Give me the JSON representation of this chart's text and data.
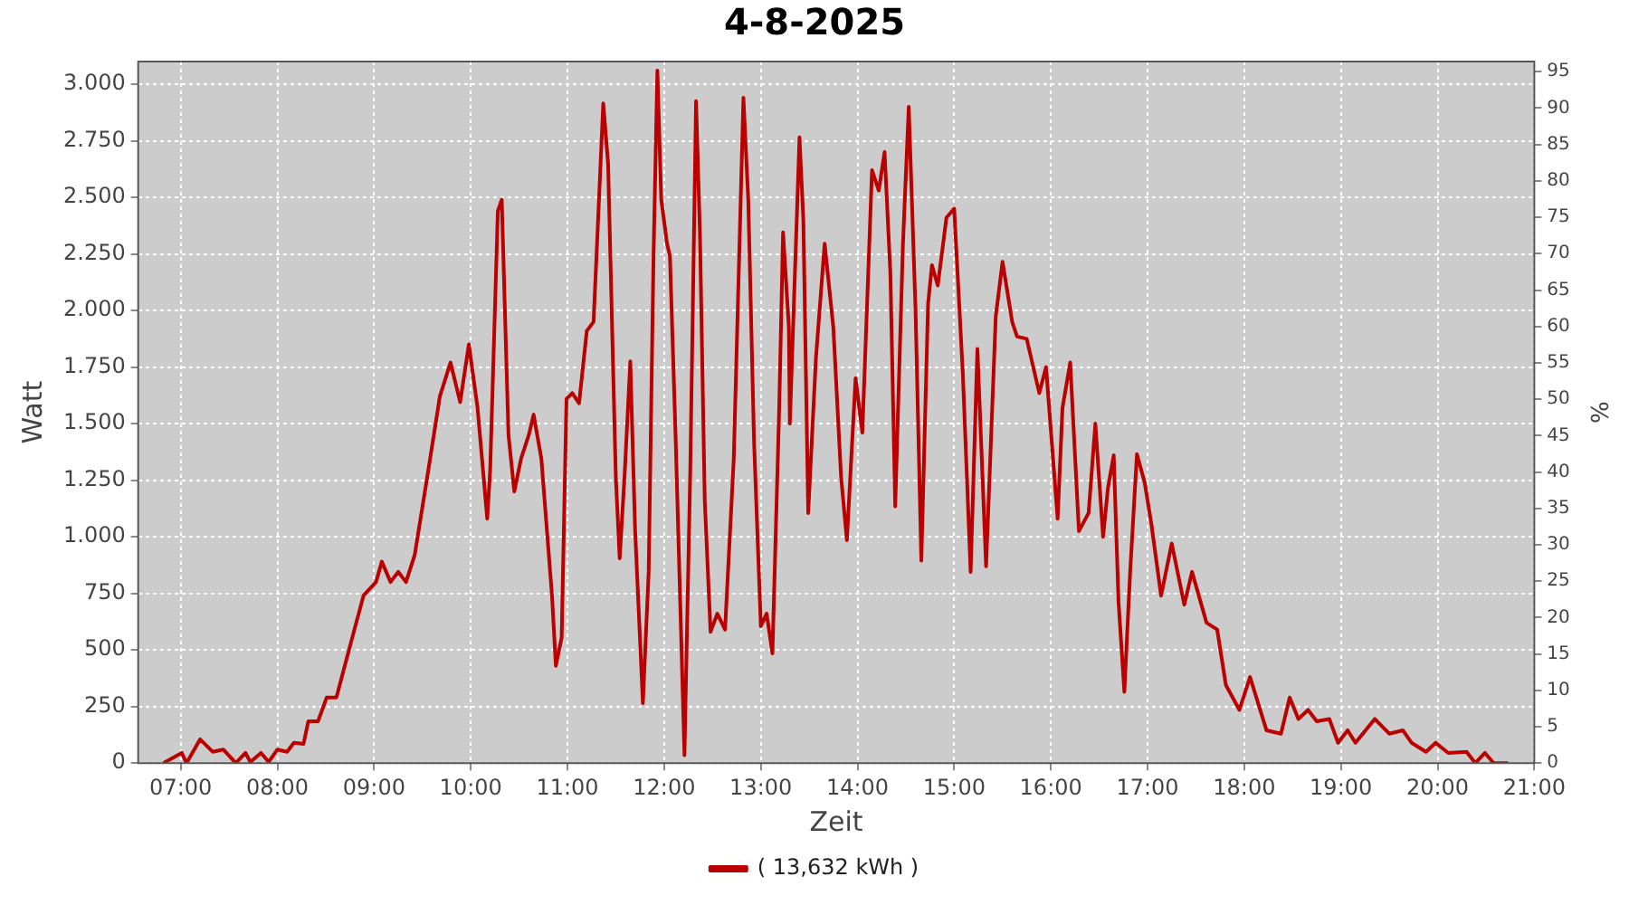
{
  "chart_data": {
    "type": "line",
    "title": "4-8-2025",
    "xlabel": "Zeit",
    "ylabel": "Watt",
    "y2label": "%",
    "xlim": [
      6.56,
      21
    ],
    "xticks": [
      {
        "value": 7,
        "label": "07:00"
      },
      {
        "value": 8,
        "label": "08:00"
      },
      {
        "value": 9,
        "label": "09:00"
      },
      {
        "value": 10,
        "label": "10:00"
      },
      {
        "value": 11,
        "label": "11:00"
      },
      {
        "value": 12,
        "label": "12:00"
      },
      {
        "value": 13,
        "label": "13:00"
      },
      {
        "value": 14,
        "label": "14:00"
      },
      {
        "value": 15,
        "label": "15:00"
      },
      {
        "value": 16,
        "label": "16:00"
      },
      {
        "value": 17,
        "label": "17:00"
      },
      {
        "value": 18,
        "label": "18:00"
      },
      {
        "value": 19,
        "label": "19:00"
      },
      {
        "value": 20,
        "label": "20:00"
      },
      {
        "value": 21,
        "label": "21:00"
      }
    ],
    "ylim": [
      0,
      3100
    ],
    "yticks": [
      0,
      250,
      500,
      750,
      {
        "value": 1000,
        "label": "1.000"
      },
      {
        "value": 1250,
        "label": "1.250"
      },
      {
        "value": 1500,
        "label": "1.500"
      },
      {
        "value": 1750,
        "label": "1.750"
      },
      {
        "value": 2000,
        "label": "2.000"
      },
      {
        "value": 2250,
        "label": "2.250"
      },
      {
        "value": 2500,
        "label": "2.500"
      },
      {
        "value": 2750,
        "label": "2.750"
      },
      {
        "value": 3000,
        "label": "3.000"
      }
    ],
    "y2lim": [
      0,
      96.4
    ],
    "y2ticks": [
      0,
      5,
      10,
      15,
      20,
      25,
      30,
      35,
      40,
      45,
      50,
      55,
      60,
      65,
      70,
      75,
      80,
      85,
      90,
      95
    ],
    "grid": true,
    "legend": "bottom",
    "marker": "none",
    "line_style": "solid",
    "series": [
      {
        "name": "( 13,632 kWh )",
        "color": "#bb0000",
        "x": [
          6.82,
          7.01,
          7.06,
          7.2,
          7.33,
          7.44,
          7.57,
          7.67,
          7.72,
          7.83,
          7.91,
          8.0,
          8.1,
          8.17,
          8.27,
          8.32,
          8.42,
          8.51,
          8.61,
          8.74,
          8.89,
          9.02,
          9.08,
          9.17,
          9.25,
          9.33,
          9.42,
          9.55,
          9.68,
          9.79,
          9.89,
          9.98,
          10.07,
          10.17,
          10.2,
          10.28,
          10.32,
          10.39,
          10.45,
          10.52,
          10.6,
          10.65,
          10.73,
          10.84,
          10.88,
          10.94,
          10.99,
          11.05,
          11.12,
          11.2,
          11.27,
          11.37,
          11.42,
          11.5,
          11.54,
          11.59,
          11.65,
          11.7,
          11.78,
          11.84,
          11.89,
          11.93,
          11.97,
          12.03,
          12.06,
          12.12,
          12.18,
          12.21,
          12.27,
          12.33,
          12.37,
          12.42,
          12.48,
          12.55,
          12.63,
          12.72,
          12.82,
          12.87,
          12.93,
          13.0,
          13.06,
          13.12,
          13.19,
          13.23,
          13.29,
          13.3,
          13.4,
          13.44,
          13.49,
          13.57,
          13.66,
          13.75,
          13.83,
          13.89,
          13.98,
          14.05,
          14.15,
          14.22,
          14.28,
          14.34,
          14.39,
          14.47,
          14.53,
          14.6,
          14.66,
          14.73,
          14.77,
          14.83,
          14.92,
          15.0,
          15.09,
          15.17,
          15.24,
          15.33,
          15.43,
          15.5,
          15.6,
          15.65,
          15.75,
          15.88,
          15.95,
          16.07,
          16.12,
          16.2,
          16.29,
          16.39,
          16.46,
          16.54,
          16.59,
          16.65,
          16.7,
          16.76,
          16.82,
          16.89,
          16.97,
          17.04,
          17.14,
          17.25,
          17.38,
          17.46,
          17.61,
          17.72,
          17.81,
          17.95,
          18.06,
          18.23,
          18.38,
          18.47,
          18.56,
          18.66,
          18.75,
          18.88,
          18.97,
          19.07,
          19.15,
          19.35,
          19.5,
          19.64,
          19.73,
          19.88,
          19.98,
          20.11,
          20.3,
          20.39,
          20.49,
          20.58,
          20.73
        ],
        "values": [
          0,
          45,
          0,
          105,
          50,
          60,
          0,
          45,
          5,
          45,
          5,
          60,
          50,
          90,
          85,
          185,
          185,
          290,
          290,
          500,
          740,
          800,
          890,
          800,
          845,
          800,
          920,
          1265,
          1620,
          1770,
          1595,
          1850,
          1570,
          1080,
          1290,
          2440,
          2490,
          1450,
          1200,
          1345,
          1450,
          1540,
          1345,
          740,
          430,
          555,
          1610,
          1635,
          1590,
          1910,
          1950,
          2915,
          2650,
          1265,
          905,
          1265,
          1775,
          1025,
          265,
          845,
          2240,
          3060,
          2490,
          2295,
          2240,
          1420,
          500,
          35,
          1290,
          2925,
          2345,
          1160,
          580,
          660,
          590,
          1345,
          2940,
          2490,
          1420,
          605,
          660,
          485,
          1570,
          2345,
          1925,
          1500,
          2765,
          2400,
          1105,
          1790,
          2295,
          1925,
          1265,
          985,
          1700,
          1460,
          2620,
          2530,
          2700,
          2165,
          1135,
          2295,
          2900,
          2005,
          895,
          2030,
          2200,
          2110,
          2410,
          2450,
          1715,
          845,
          1830,
          870,
          1975,
          2215,
          1950,
          1885,
          1875,
          1635,
          1750,
          1080,
          1570,
          1770,
          1025,
          1105,
          1500,
          1000,
          1215,
          1360,
          710,
          315,
          845,
          1365,
          1240,
          1055,
          740,
          970,
          700,
          845,
          620,
          590,
          345,
          235,
          380,
          145,
          130,
          290,
          195,
          235,
          185,
          195,
          90,
          145,
          90,
          195,
          130,
          145,
          90,
          50,
          90,
          45,
          50,
          0,
          45,
          0,
          0
        ]
      }
    ]
  }
}
